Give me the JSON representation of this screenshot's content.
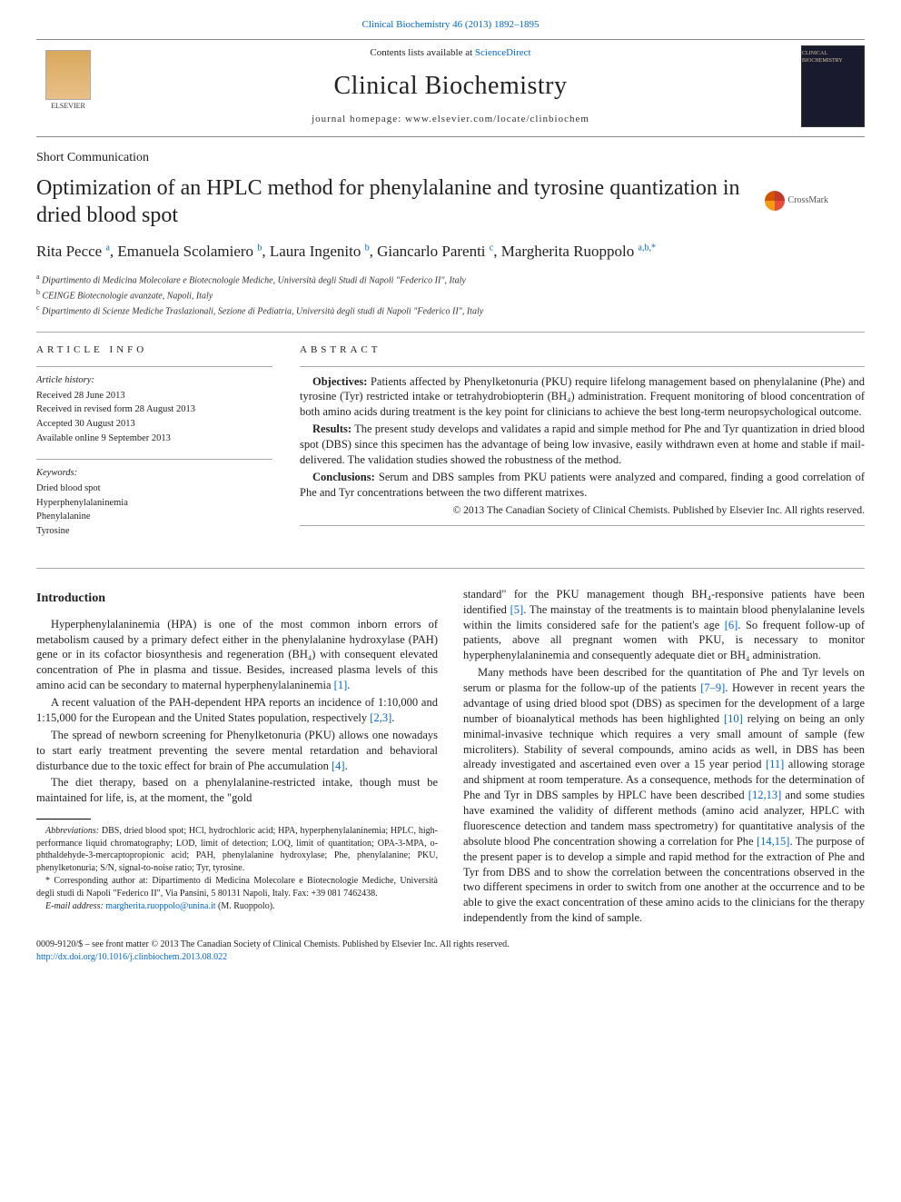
{
  "top_citation": "Clinical Biochemistry 46 (2013) 1892–1895",
  "header": {
    "contents_prefix": "Contents lists available at ",
    "contents_link": "ScienceDirect",
    "journal_name": "Clinical Biochemistry",
    "homepage_label": "journal homepage: ",
    "homepage_url": "www.elsevier.com/locate/clinbiochem",
    "publisher": "ELSEVIER",
    "cover_text": "CLINICAL BIOCHEMISTRY"
  },
  "article": {
    "section": "Short Communication",
    "title": "Optimization of an HPLC method for phenylalanine and tyrosine quantization in dried blood spot",
    "crossmark": "CrossMark",
    "authors_html": "Rita Pecce <sup>a</sup>, Emanuela Scolamiero <sup>b</sup>, Laura Ingenito <sup>b</sup>, Giancarlo Parenti <sup>c</sup>, Margherita Ruoppolo <sup>a,b,*</sup>",
    "affiliations": [
      {
        "sup": "a",
        "text": "Dipartimento di Medicina Molecolare e Biotecnologie Mediche, Università degli Studi di Napoli \"Federico II\", Italy"
      },
      {
        "sup": "b",
        "text": "CEINGE Biotecnologie avanzate, Napoli, Italy"
      },
      {
        "sup": "c",
        "text": "Dipartimento di Scienze Mediche Traslazionali, Sezione di Pediatria, Università degli studi di Napoli \"Federico II\", Italy"
      }
    ]
  },
  "info": {
    "heading": "ARTICLE INFO",
    "history_label": "Article history:",
    "history": [
      "Received 28 June 2013",
      "Received in revised form 28 August 2013",
      "Accepted 30 August 2013",
      "Available online 9 September 2013"
    ],
    "keywords_label": "Keywords:",
    "keywords": [
      "Dried blood spot",
      "Hyperphenylalaninemia",
      "Phenylalanine",
      "Tyrosine"
    ]
  },
  "abstract": {
    "heading": "ABSTRACT",
    "p1_label": "Objectives:",
    "p1": " Patients affected by Phenylketonuria (PKU) require lifelong management based on phenylalanine (Phe) and tyrosine (Tyr) restricted intake or tetrahydrobiopterin (BH₄) administration. Frequent monitoring of blood concentration of both amino acids during treatment is the key point for clinicians to achieve the best long-term neuropsychological outcome.",
    "p2_label": "Results:",
    "p2": " The present study develops and validates a rapid and simple method for Phe and Tyr quantization in dried blood spot (DBS) since this specimen has the advantage of being low invasive, easily withdrawn even at home and stable if mail-delivered. The validation studies showed the robustness of the method.",
    "p3_label": "Conclusions:",
    "p3": " Serum and DBS samples from PKU patients were analyzed and compared, finding a good correlation of Phe and Tyr concentrations between the two different matrixes.",
    "copyright": "© 2013 The Canadian Society of Clinical Chemists. Published by Elsevier Inc. All rights reserved."
  },
  "body": {
    "intro_heading": "Introduction",
    "p1": "Hyperphenylalaninemia (HPA) is one of the most common inborn errors of metabolism caused by a primary defect either in the phenylalanine hydroxylase (PAH) gene or in its cofactor biosynthesis and regeneration (BH₄) with consequent elevated concentration of Phe in plasma and tissue. Besides, increased plasma levels of this amino acid can be secondary to maternal hyperphenylalaninemia ",
    "ref1": "[1]",
    "p2": "A recent valuation of the PAH-dependent HPA reports an incidence of 1:10,000 and 1:15,000 for the European and the United States population, respectively ",
    "ref23": "[2,3]",
    "p3": "The spread of newborn screening for Phenylketonuria (PKU) allows one nowadays to start early treatment preventing the severe mental retardation and behavioral disturbance due to the toxic effect for brain of Phe accumulation ",
    "ref4": "[4]",
    "p4": "The diet therapy, based on a phenylalanine-restricted intake, though must be maintained for life, is, at the moment, the \"gold",
    "p5a": "standard\" for the PKU management though BH₄-responsive patients have been identified ",
    "ref5": "[5]",
    "p5b": ". The mainstay of the treatments is to maintain blood phenylalanine levels within the limits considered safe for the patient's age ",
    "ref6": "[6]",
    "p5c": ". So frequent follow-up of patients, above all pregnant women with PKU, is necessary to monitor hyperphenylalaninemia and consequently adequate diet or BH₄ administration.",
    "p6a": "Many methods have been described for the quantitation of Phe and Tyr levels on serum or plasma for the follow-up of the patients ",
    "ref79": "[7–9]",
    "p6b": ". However in recent years the advantage of using dried blood spot (DBS) as specimen for the development of a large number of bioanalytical methods has been highlighted ",
    "ref10": "[10]",
    "p6c": " relying on being an only minimal-invasive technique which requires a very small amount of sample (few microliters). Stability of several compounds, amino acids as well, in DBS has been already investigated and ascertained even over a 15 year period ",
    "ref11": "[11]",
    "p6d": " allowing storage and shipment at room temperature. As a consequence, methods for the determination of Phe and Tyr in DBS samples by HPLC have been described ",
    "ref1213": "[12,13]",
    "p6e": " and some studies have examined the validity of different methods (amino acid analyzer, HPLC with fluorescence detection and tandem mass spectrometry) for quantitative analysis of the absolute blood Phe concentration showing a correlation for Phe ",
    "ref1415": "[14,15]",
    "p6f": ". The purpose of the present paper is to develop a simple and rapid method for the extraction of Phe and Tyr from DBS and to show the correlation between the concentrations observed in the two different specimens in order to switch from one another at the occurrence and to be able to give the exact concentration of these amino acids to the clinicians for the therapy independently from the kind of sample."
  },
  "footnotes": {
    "abbr_label": "Abbreviations:",
    "abbr": " DBS, dried blood spot; HCl, hydrochloric acid; HPA, hyperphenylalaninemia; HPLC, high-performance liquid chromatography; LOD, limit of detection; LOQ, limit of quantitation; OPA-3-MPA, o-phthaldehyde-3-mercaptopropionic acid; PAH, phenylalanine hydroxylase; Phe, phenylalanine; PKU, phenylketonuria; S/N, signal-to-noise ratio; Tyr, tyrosine.",
    "corr": "* Corresponding author at: Dipartimento di Medicina Molecolare e Biotecnologie Mediche, Università degli studi di Napoli \"Federico II\", Via Pansini, 5 80131 Napoli, Italy. Fax: +39 081 7462438.",
    "email_label": "E-mail address:",
    "email": "margherita.ruoppolo@unina.it",
    "email_name": " (M. Ruoppolo)."
  },
  "footer": {
    "line1": "0009-9120/$ – see front matter © 2013 The Canadian Society of Clinical Chemists. Published by Elsevier Inc. All rights reserved.",
    "doi": "http://dx.doi.org/10.1016/j.clinbiochem.2013.08.022"
  },
  "colors": {
    "link": "#0066cc",
    "text": "#222222",
    "rule": "#aaaaaa"
  }
}
